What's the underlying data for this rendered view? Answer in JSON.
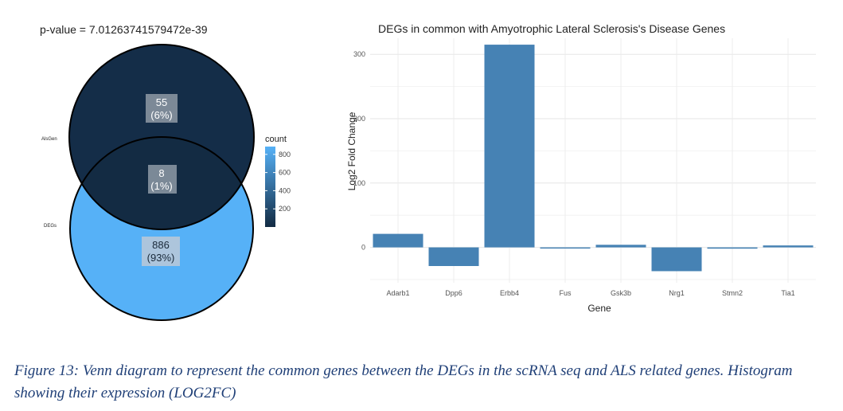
{
  "venn": {
    "title": "p-value = 7.01263741579472e-39",
    "set_labels": [
      "AlsGen",
      "DEGs"
    ],
    "regions": [
      {
        "name": "AlsGen only",
        "count": 55,
        "count_label": "55",
        "percent_label": "(6%)"
      },
      {
        "name": "intersection",
        "count": 8,
        "count_label": "8",
        "percent_label": "(1%)"
      },
      {
        "name": "DEGs only",
        "count": 886,
        "count_label": "886",
        "percent_label": "(93%)"
      }
    ],
    "legend": {
      "title": "count",
      "ticks": [
        "800",
        "600",
        "400",
        "200"
      ],
      "tick_values": [
        800,
        600,
        400,
        200
      ],
      "range": [
        0,
        886
      ],
      "color_low": "#132b43",
      "color_high": "#56b1f7"
    }
  },
  "chart_data": {
    "type": "bar",
    "title": "DEGs in common with Amyotrophic  Lateral Sclerosis's Disease Genes",
    "xlabel": "Gene",
    "ylabel": "Log2 Fold Change",
    "categories": [
      "Adarb1",
      "Dpp6",
      "Erbb4",
      "Fus",
      "Gsk3b",
      "Nrg1",
      "Stmn2",
      "Tia1"
    ],
    "values": [
      21,
      -29,
      315,
      -1,
      4,
      -37,
      -2,
      3
    ],
    "ylim": [
      -55,
      325
    ],
    "yticks": [
      0,
      100,
      200,
      300
    ],
    "grid": true,
    "bar_color": "#4682b4"
  },
  "caption": "Figure 13: Venn diagram to represent the common genes between the DEGs in the scRNA seq and ALS related genes. Histogram showing their expression (LOG2FC)"
}
